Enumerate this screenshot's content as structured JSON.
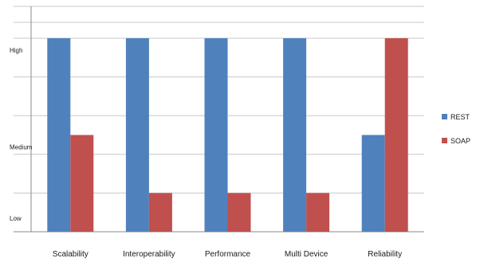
{
  "chart_data": {
    "type": "bar",
    "title": "",
    "xlabel": "",
    "ylabel": "",
    "categories": [
      "Scalability",
      "Interoperability",
      "Performance",
      "Multi Device",
      "Reliability"
    ],
    "y_levels": [
      {
        "label": "Low",
        "value": 0
      },
      {
        "label": "Medium",
        "value": 5
      },
      {
        "label": "High",
        "value": 10
      }
    ],
    "ylim": [
      0,
      10
    ],
    "ygrid_step": 1,
    "series": [
      {
        "name": "REST",
        "color": "#4f81bd",
        "values": [
          10,
          10,
          10,
          10,
          5
        ]
      },
      {
        "name": "SOAP",
        "color": "#c0504d",
        "values": [
          5,
          2,
          2,
          2,
          10
        ]
      }
    ],
    "grid": true,
    "legend_position": "right"
  }
}
